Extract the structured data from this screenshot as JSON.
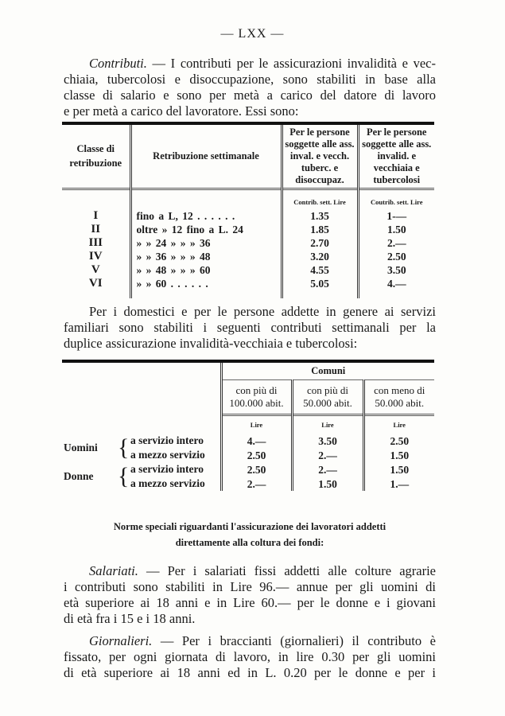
{
  "page_number": "— LXX —",
  "para1": {
    "title": "Contributi.",
    "lines": [
      " — I contributi per le assicurazioni invalidità e vec-",
      "chiaia, tubercolosi e disoccupazione, sono stabiliti in base alla",
      "classe di salario e sono per metà a carico del datore di lavoro",
      "e per metà a carico del lavoratore. Essi sono:"
    ]
  },
  "table1": {
    "headers": [
      "Classe di retribuzione",
      "Retribuzione settimanale",
      "Per le persone soggette alle ass. inval. e vecch. tuberc. e disoccupaz.",
      "Per le persone soggette alle ass. invalid. e vecchiaia e tubercolosi"
    ],
    "units": [
      "Contrib. sett. Lire",
      "Coutrib. sett. Lire"
    ],
    "rows": [
      {
        "classe": "I",
        "retribuzione": "fino a L, 12 . . . . . .",
        "col3": "1.35",
        "col4": "1-—"
      },
      {
        "classe": "II",
        "retribuzione": "oltre » 12 fino a L. 24",
        "col3": "1.85",
        "col4": "1.50"
      },
      {
        "classe": "III",
        "retribuzione": "» » 24 » » » 36",
        "col3": "2.70",
        "col4": "2.—"
      },
      {
        "classe": "IV",
        "retribuzione": "» » 36 » » » 48",
        "col3": "3.20",
        "col4": "2.50"
      },
      {
        "classe": "V",
        "retribuzione": "» » 48 » » » 60",
        "col3": "4.55",
        "col4": "3.50"
      },
      {
        "classe": "VI",
        "retribuzione": "» » 60 . . . . . .",
        "col3": "5.05",
        "col4": "4.—"
      }
    ]
  },
  "para2": {
    "lines": [
      "Per i domestici e per le persone addette in genere ai servizi",
      "familiari sono stabiliti i seguenti contributi settimanali per la",
      "duplice assicurazione invalidità-vecchiaia e tubercolosi:"
    ]
  },
  "table2": {
    "group_header": "Comuni",
    "headers": [
      "con più di 100.000 abit.",
      "con più di 50.000 abit.",
      "con meno di 50.000 abit."
    ],
    "unit": "Lire",
    "groups": [
      {
        "label": "Uomini",
        "rows": [
          {
            "tipo": "a servizio intero",
            "values": [
              "4.—",
              "3.50",
              "2.50"
            ]
          },
          {
            "tipo": "a mezzo servizio",
            "values": [
              "2.50",
              "2.—",
              "1.50"
            ]
          }
        ]
      },
      {
        "label": "Donne",
        "rows": [
          {
            "tipo": "a servizio intero",
            "values": [
              "2.50",
              "2.—",
              "1.50"
            ]
          },
          {
            "tipo": "a mezzo servizio",
            "values": [
              "2.—",
              "1.50",
              "1.—"
            ]
          }
        ]
      }
    ]
  },
  "heading": {
    "lines": [
      "Norme speciali riguardanti l'assicurazione dei lavoratori addetti",
      "direttamente alla coltura dei fondi:"
    ]
  },
  "para3": {
    "title": "Salariati.",
    "lines": [
      " — Per i salariati fissi addetti alle colture agrarie",
      "i contributi sono stabiliti in Lire 96.— annue per gli uomini di",
      "età superiore ai 18 anni e in Lire 60.— per le donne e i giovani",
      "di età fra i 15 e i 18 anni."
    ]
  },
  "para4": {
    "title": "Giornalieri.",
    "lines": [
      " — Per i braccianti (giornalieri) il contributo è",
      "fissato, per ogni giornata di lavoro, in lire 0.30 per gli uomini",
      "di età superiore ai 18 anni ed in L. 0.20 per le donne e per i"
    ]
  }
}
